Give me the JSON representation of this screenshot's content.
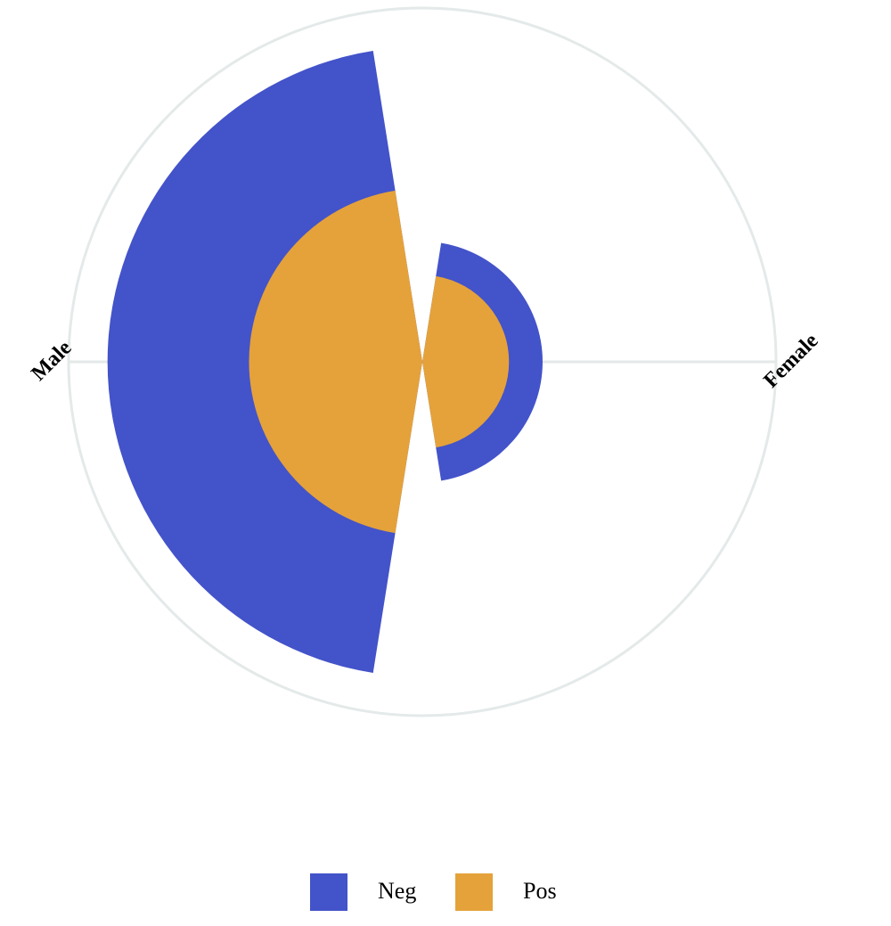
{
  "chart_data": {
    "type": "polar-bar",
    "categories": [
      "Male",
      "Female"
    ],
    "series": [
      {
        "name": "Neg",
        "color": "#4353c9",
        "values": [
          89,
          34
        ]
      },
      {
        "name": "Pos",
        "color": "#e5a23a",
        "values": [
          49,
          24.5
        ]
      }
    ],
    "ylim": [
      0,
      100
    ],
    "legend": "bottom"
  }
}
